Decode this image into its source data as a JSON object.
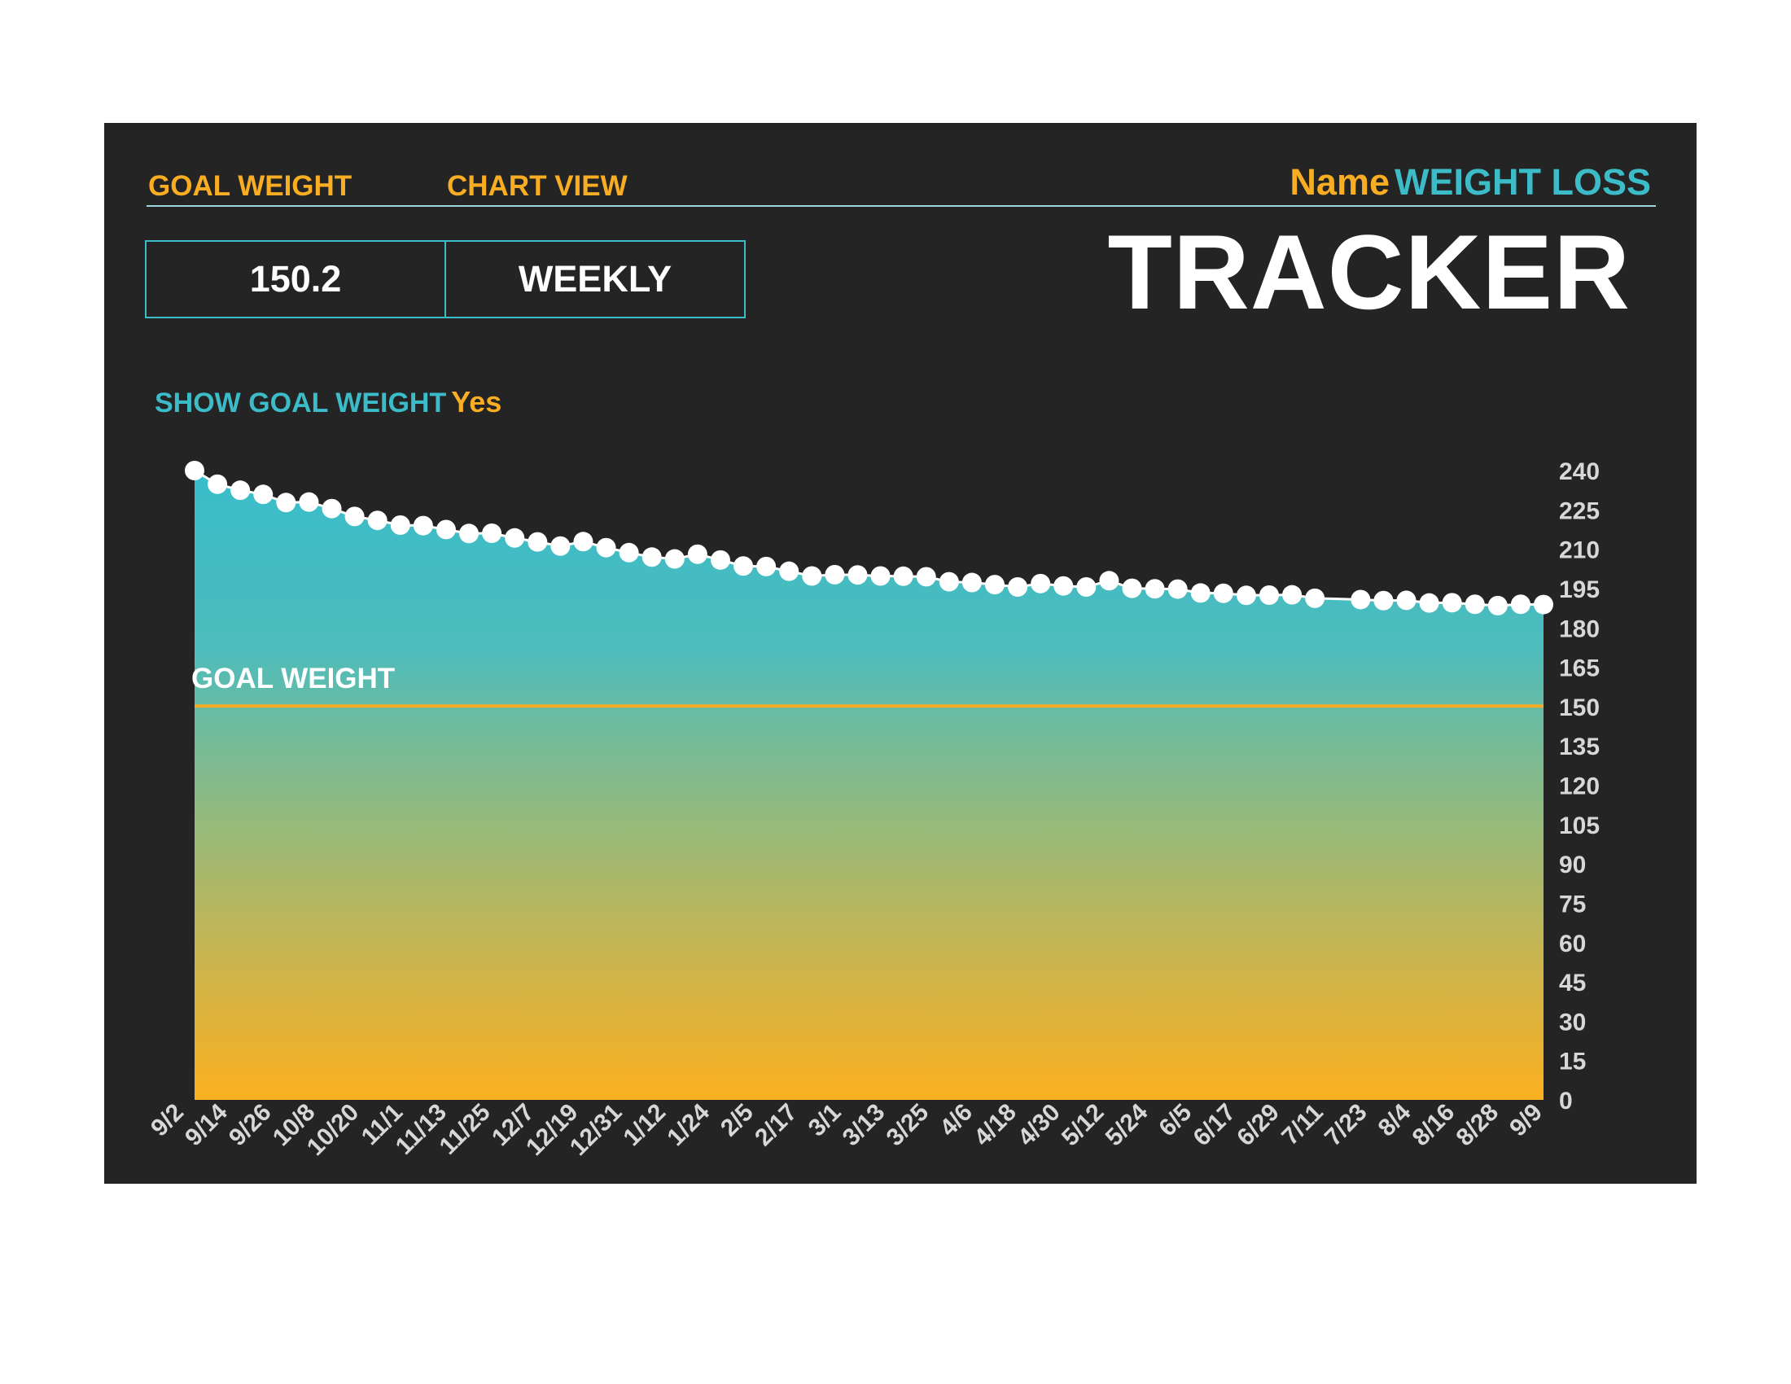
{
  "header": {
    "goal_weight_label": "GOAL WEIGHT",
    "chart_view_label": "CHART VIEW",
    "goal_weight_value": "150.2",
    "chart_view_value": "WEEKLY",
    "title_name": "Name",
    "title_text": "WEIGHT LOSS",
    "title_big": "TRACKER",
    "show_goal_label": "SHOW GOAL WEIGHT",
    "show_goal_value": "Yes"
  },
  "colors": {
    "panel": "#232423",
    "accent_orange": "#f8ad23",
    "accent_teal": "#3bbcc8",
    "goal_line": "#f6ac24"
  },
  "chart_data": {
    "type": "area",
    "x_ticks": [
      "9/2",
      "9/14",
      "9/26",
      "10/8",
      "10/20",
      "11/1",
      "11/13",
      "11/25",
      "12/7",
      "12/19",
      "12/31",
      "1/12",
      "1/24",
      "2/5",
      "2/17",
      "3/1",
      "3/13",
      "3/25",
      "4/6",
      "4/18",
      "4/30",
      "5/12",
      "5/24",
      "6/5",
      "6/17",
      "6/29",
      "7/11",
      "7/23",
      "8/4",
      "8/16",
      "8/28",
      "9/9"
    ],
    "y_ticks": [
      0,
      15,
      30,
      45,
      60,
      75,
      90,
      105,
      120,
      135,
      150,
      165,
      180,
      195,
      210,
      225,
      240
    ],
    "ylim": [
      0,
      240
    ],
    "y_axis_position": "right",
    "goal_label": "GOAL WEIGHT",
    "goal_weight": 150.2,
    "series": [
      {
        "values": [
          240.0,
          234.8,
          232.5,
          230.9,
          227.8,
          228.0,
          225.5,
          222.5,
          221.0,
          219.2,
          219.0,
          217.5,
          216.0,
          216.1,
          214.3,
          212.8,
          211.2,
          212.9,
          210.6,
          208.7,
          207.0,
          206.3,
          208.1,
          205.9,
          203.6,
          203.4,
          201.6,
          199.8,
          200.3,
          200.2,
          199.8,
          199.7,
          199.5,
          197.6,
          197.3,
          196.5,
          195.6,
          196.9,
          196.0,
          195.6,
          198.0,
          195.1,
          194.9,
          194.8,
          193.3,
          193.2,
          192.4,
          192.5,
          192.6,
          191.3,
          190.8,
          190.4,
          190.5,
          189.5,
          189.6,
          189.0,
          188.5,
          189.0,
          188.9
        ],
        "gaps_after": [
          49
        ]
      }
    ],
    "grid": false,
    "legend": "none"
  }
}
